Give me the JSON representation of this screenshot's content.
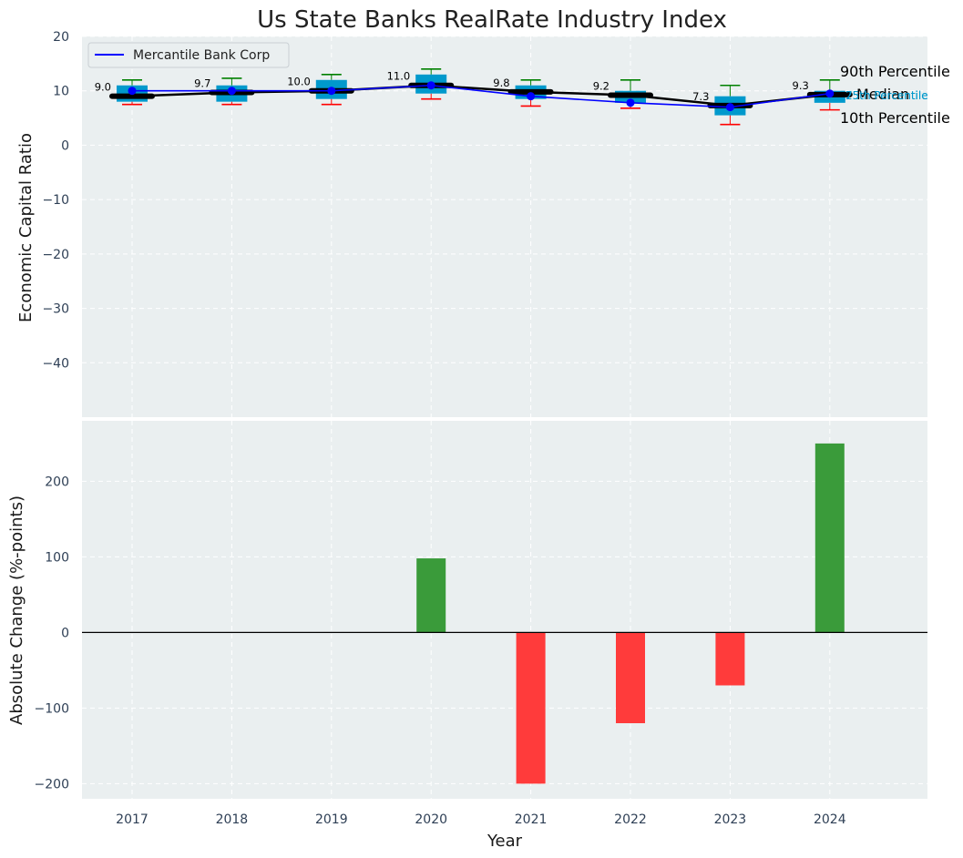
{
  "chart_data": [
    {
      "type": "box",
      "title": "Us State Banks RealRate Industry Index",
      "xlabel": "",
      "ylabel": "Economic Capital Ratio",
      "ylim": [
        -50,
        20
      ],
      "yticks": [
        -40,
        -30,
        -20,
        -10,
        0,
        10,
        20
      ],
      "tick_labels": [
        "−40",
        "−30",
        "−20",
        "−10",
        "0",
        "10",
        "20"
      ],
      "grid": true,
      "legend_position": "top-left",
      "categories": [
        "2017",
        "2018",
        "2019",
        "2020",
        "2021",
        "2022",
        "2023",
        "2024"
      ],
      "percentile_90": [
        12.0,
        12.3,
        13.0,
        14.0,
        12.0,
        12.0,
        11.0,
        12.0
      ],
      "percentile_75": [
        11.0,
        11.0,
        12.0,
        13.0,
        11.0,
        10.0,
        9.0,
        10.0
      ],
      "median": [
        9.0,
        9.7,
        10.0,
        11.0,
        9.8,
        9.2,
        7.3,
        9.3
      ],
      "median_labels": [
        "9.0",
        "9.7",
        "10.0",
        "11.0",
        "9.8",
        "9.2",
        "7.3",
        "9.3"
      ],
      "percentile_25": [
        8.0,
        8.0,
        8.5,
        9.5,
        8.5,
        7.8,
        5.5,
        7.8
      ],
      "percentile_10": [
        7.5,
        7.5,
        7.5,
        8.5,
        7.2,
        6.8,
        3.8,
        6.5
      ],
      "series": [
        {
          "name": "Mercantile Bank Corp",
          "values": [
            10.0,
            10.0,
            10.0,
            11.0,
            9.0,
            7.8,
            7.0,
            9.5
          ]
        }
      ],
      "annotations": {
        "p90": "90th Percentile",
        "p75": "75th Percentile",
        "median": "Median",
        "p25": "25th Percentile",
        "p10": "10th Percentile"
      },
      "colors": {
        "box": "#0099cc",
        "median_line": "#000000",
        "company_line": "#0000ff",
        "whisker_top": "#008000",
        "whisker_bottom": "#ff0000",
        "plot_bg": "#eaeff0"
      }
    },
    {
      "type": "bar",
      "title": "",
      "xlabel": "Year",
      "ylabel": "Absolute Change (%-points)",
      "ylim": [
        -220,
        280
      ],
      "yticks": [
        -200,
        -100,
        0,
        100,
        200
      ],
      "tick_labels": [
        "−200",
        "−100",
        "0",
        "100",
        "200"
      ],
      "grid": true,
      "categories": [
        "2017",
        "2018",
        "2019",
        "2020",
        "2021",
        "2022",
        "2023",
        "2024"
      ],
      "values": [
        0,
        0,
        0,
        98,
        -200,
        -120,
        -70,
        250
      ],
      "colors": {
        "positive": "#3a9b3a",
        "negative": "#ff3b3b",
        "zero_line": "#000000"
      }
    }
  ]
}
